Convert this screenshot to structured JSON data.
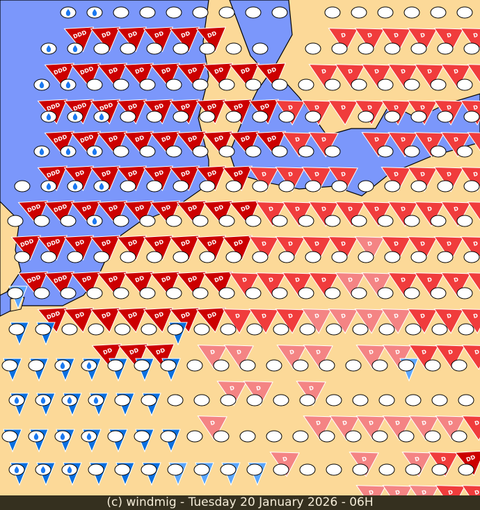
{
  "footer": {
    "caption": "(c) windmig - Tuesday 20 January 2026 - 06H"
  },
  "colors": {
    "sea": "#7b97fb",
    "land": "#fcd998",
    "dark_red": "#cc0000",
    "medium_red": "#f03c3c",
    "pink": "#f48484",
    "blue": "#0a6fe0",
    "light_blue": "#5aa6ff",
    "oval": "#ffffff",
    "drop": "#1a78f0"
  },
  "legend_codes": {
    "o": "station oval only",
    "w": "station oval with rain-drop icon",
    "3": "DDD",
    "2": "DD",
    "1": "D"
  },
  "stations": [
    "- - w3r w2r o2r o2r o2r o2r o o o - o1m o1m o1m o1m o1m o1m",
    "- w3r w3r o2r o2r o2r o2r o2r o2r o2r - o1m o1m o1m o1m o1m o1m o1m",
    "- w3r w3r o3r o2r o2r o2r o2r o2r o2r o1m o1m o1m o1m o1m o1m o1m o1m",
    "- w3r w3r w2r o2r o2r o2r o2r o2r o2r o1m o1m - o1m o1m o1m o1m o1m o1m",
    "- w3r w2r w2r o2r o2r o2r o2r o2r o1m o1m o1m o1m - o1m o1m o1m o1m o1m",
    "o3r w3r w2r w2r o2r o2r o2r o2r o2r o1m o1m o1m o1m o1m o1m o1m o1m o1m",
    "o3r o3r o2r w2r o2r o2r o2r o2r o2r o1m o1m o1m o1m o1p o1m o1m o1m o1m",
    "o3r o3r o2r o2r o2r o2r o2r o2r o1m o1m o1m o1m o1p o1p o1m o1m o1m o1m",
    "o2l o3r o2r o2r o2r o2r o2r o2r o1m o1m o1m o1p o1p o1p o1p o1m o1m o1m",
    "o2b o2b o o2r o2r o2r o2b o1p o1p o o1p o1p o o1p o1p o1m o1m o1m",
    "o2b o2b w2b w2b o2b o2b o2b o o1p o1p o o1p o o o o2l o o",
    "w2b w2b w2b w2b o2b o2b o o1p o o o o1p o1p o1p o1p o1p o1p o1m",
    "o2b w2b w2b w2b o2b o2b o2b o o o o1p o o o1p o o1p o1m o2r",
    "w2b w2b w2b o2b o2b o2b o2l o2l o2l o2l o o o o1p o1p o1p o1m o1m"
  ]
}
